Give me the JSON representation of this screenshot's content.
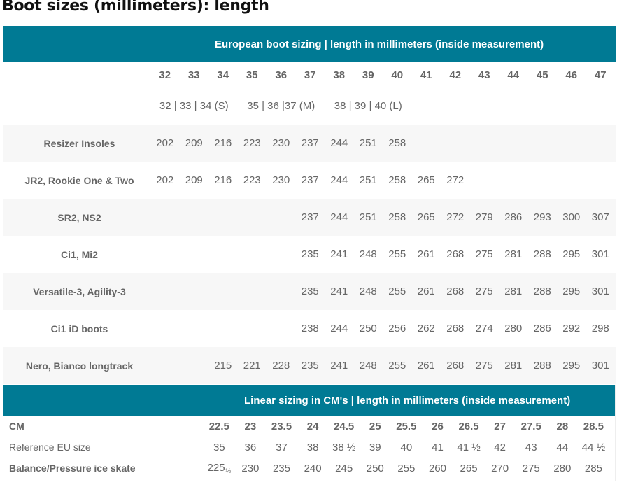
{
  "title": "Boot sizes (millimeters): length",
  "teal": "#007a94",
  "euro": {
    "header": "European boot sizing | length in millimeters (inside measurement)",
    "sizes": [
      "32",
      "33",
      "34",
      "35",
      "36",
      "37",
      "38",
      "39",
      "40",
      "41",
      "42",
      "43",
      "44",
      "45",
      "46",
      "47"
    ],
    "groups": [
      "32 | 33 | 34 (S)",
      "35 | 36 |37 (M)",
      "38 | 39 | 40 (L)"
    ],
    "rows": [
      {
        "label": "Resizer Insoles",
        "values": [
          "202",
          "209",
          "216",
          "223",
          "230",
          "237",
          "244",
          "251",
          "258",
          null,
          null,
          null,
          null,
          null,
          null,
          null
        ]
      },
      {
        "label": "JR2, Rookie One & Two",
        "values": [
          "202",
          "209",
          "216",
          "223",
          "230",
          "237",
          "244",
          "251",
          "258",
          "265",
          "272",
          null,
          null,
          null,
          null,
          null
        ]
      },
      {
        "label": "SR2, NS2",
        "values": [
          null,
          null,
          null,
          null,
          null,
          "237",
          "244",
          "251",
          "258",
          "265",
          "272",
          "279",
          "286",
          "293",
          "300",
          "307"
        ]
      },
      {
        "label": "Ci1, Mi2",
        "values": [
          null,
          null,
          null,
          null,
          null,
          "235",
          "241",
          "248",
          "255",
          "261",
          "268",
          "275",
          "281",
          "288",
          "295",
          "301"
        ]
      },
      {
        "label": "Versatile-3, Agility-3",
        "values": [
          null,
          null,
          null,
          null,
          null,
          "235",
          "241",
          "248",
          "255",
          "261",
          "268",
          "275",
          "281",
          "288",
          "295",
          "301"
        ]
      },
      {
        "label": "Ci1 iD boots",
        "values": [
          null,
          null,
          null,
          null,
          null,
          "238",
          "244",
          "250",
          "256",
          "262",
          "268",
          "274",
          "280",
          "286",
          "292",
          "298"
        ]
      },
      {
        "label": "Nero, Bianco longtrack",
        "values": [
          null,
          null,
          "215",
          "221",
          "228",
          "235",
          "241",
          "248",
          "255",
          "261",
          "268",
          "275",
          "281",
          "288",
          "295",
          "301"
        ]
      }
    ]
  },
  "linear": {
    "header": "Linear sizing in CM's | length in millimeters (inside measurement)",
    "cm_label": "CM",
    "cm": [
      "22.5",
      "23",
      "23.5",
      "24",
      "24.5",
      "25",
      "25.5",
      "26",
      "26.5",
      "27",
      "27.5",
      "28",
      "28.5"
    ],
    "ref_label": "Reference EU size",
    "ref": [
      "35",
      "36",
      "37",
      "38",
      "38 ½",
      "39",
      "40",
      "41",
      "41 ½",
      "42",
      "43",
      "44",
      "44 ½"
    ],
    "balance_label": "Balance/Pressure ice skate",
    "balance": [
      "225",
      "230",
      "235",
      "240",
      "245",
      "250",
      "255",
      "260",
      "265",
      "270",
      "275",
      "280",
      "285"
    ],
    "balance_overlay": "½"
  }
}
